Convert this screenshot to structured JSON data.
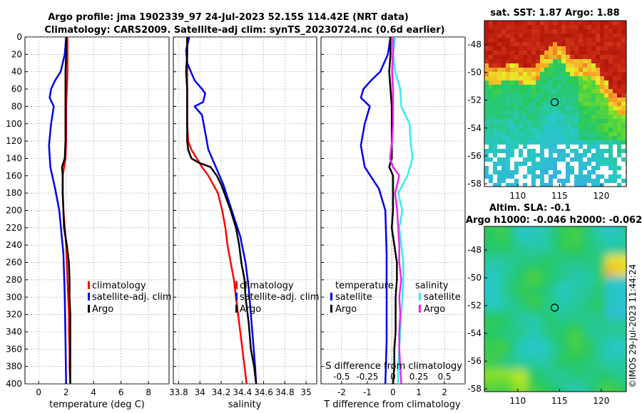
{
  "figure": {
    "title_line1": "Argo profile: jma 1902339_97 24-Jul-2023 52.15S 114.42E (NRT data)",
    "title_line2": "Climatology: CARS2009. Satellite-adj clim: synTS_20230724.nc (0.6d earlier)",
    "watermark": "©IMOS 29-Jul-2023 11:44:24",
    "colors": {
      "climatology": "#ff0000",
      "satellite": "#0000ee",
      "argo": "#000000",
      "salinity_satellite": "#33eeee",
      "salinity_argo": "#ee22ee"
    }
  },
  "chart_data": [
    {
      "type": "line",
      "name": "temperature-profile",
      "xlabel": "temperature (deg C)",
      "ylabel": "",
      "xlim": [
        -1,
        9.5
      ],
      "ylim": [
        400,
        0
      ],
      "xticks": [
        "0",
        "2",
        "4",
        "6",
        "8"
      ],
      "xtick_values": [
        0,
        2,
        4,
        6,
        8
      ],
      "yticks": [
        "0",
        "20",
        "40",
        "60",
        "80",
        "100",
        "120",
        "140",
        "160",
        "180",
        "200",
        "220",
        "240",
        "260",
        "280",
        "300",
        "320",
        "340",
        "360",
        "380",
        "400"
      ],
      "ytick_values": [
        0,
        20,
        40,
        60,
        80,
        100,
        120,
        140,
        160,
        180,
        200,
        220,
        240,
        260,
        280,
        300,
        320,
        340,
        360,
        380,
        400
      ],
      "legend": [
        "climatology",
        "satellite-adj. clim",
        "Argo"
      ],
      "series": [
        {
          "name": "climatology",
          "color": "#ff0000",
          "depth": [
            0,
            20,
            40,
            60,
            80,
            100,
            120,
            140,
            160,
            180,
            200,
            220,
            240,
            260,
            280,
            300,
            320,
            340,
            360,
            380,
            400
          ],
          "values": [
            2.1,
            2.1,
            2.1,
            2.05,
            2.0,
            2.0,
            2.0,
            1.95,
            1.75,
            1.75,
            1.8,
            1.9,
            2.0,
            2.05,
            2.1,
            2.15,
            2.2,
            2.2,
            2.25,
            2.25,
            2.3
          ]
        },
        {
          "name": "satellite-adj. clim",
          "color": "#0000ee",
          "depth": [
            0,
            20,
            40,
            50,
            60,
            70,
            80,
            100,
            125,
            150,
            175,
            200,
            250,
            300,
            350,
            400
          ],
          "values": [
            2.0,
            1.9,
            1.6,
            1.2,
            0.9,
            0.8,
            1.1,
            0.9,
            0.75,
            0.85,
            1.2,
            1.5,
            1.8,
            1.9,
            1.95,
            2.0
          ]
        },
        {
          "name": "Argo",
          "color": "#000000",
          "depth": [
            0,
            20,
            40,
            60,
            80,
            100,
            120,
            140,
            150,
            160,
            180,
            200,
            220,
            240,
            260,
            280,
            300,
            320,
            340,
            360,
            380,
            400
          ],
          "values": [
            2.0,
            2.0,
            1.95,
            1.95,
            1.95,
            1.95,
            1.95,
            1.9,
            1.7,
            1.75,
            1.75,
            1.8,
            1.85,
            2.05,
            2.2,
            2.25,
            2.25,
            2.3,
            2.3,
            2.3,
            2.3,
            2.3
          ]
        }
      ]
    },
    {
      "type": "line",
      "name": "salinity-profile",
      "xlabel": "salinity",
      "ylabel": "",
      "xlim": [
        33.75,
        35.1
      ],
      "ylim": [
        400,
        0
      ],
      "xticks": [
        "33.8",
        "34",
        "34.2",
        "34.4",
        "34.6",
        "34.8",
        "35"
      ],
      "xtick_values": [
        33.8,
        34.0,
        34.2,
        34.4,
        34.6,
        34.8,
        35.0
      ],
      "legend": [
        "climatology",
        "satellite-adj. clim",
        "Argo"
      ],
      "series": [
        {
          "name": "climatology",
          "color": "#ff0000",
          "depth": [
            0,
            20,
            40,
            60,
            80,
            100,
            120,
            130,
            140,
            150,
            160,
            180,
            200,
            220,
            240,
            260,
            280,
            300,
            320,
            340,
            360,
            380,
            400
          ],
          "values": [
            33.88,
            33.88,
            33.88,
            33.88,
            33.88,
            33.88,
            33.89,
            33.92,
            33.97,
            34.02,
            34.08,
            34.17,
            34.21,
            34.24,
            34.26,
            34.29,
            34.32,
            34.34,
            34.36,
            34.38,
            34.4,
            34.42,
            34.44
          ]
        },
        {
          "name": "satellite-adj. clim",
          "color": "#0000ee",
          "depth": [
            0,
            15,
            30,
            50,
            60,
            65,
            75,
            80,
            90,
            110,
            130,
            150,
            170,
            200,
            230,
            260,
            290,
            320,
            350,
            380,
            400
          ],
          "values": [
            33.9,
            33.87,
            33.88,
            33.95,
            34.02,
            34.05,
            34.03,
            33.95,
            34.02,
            34.05,
            34.08,
            34.15,
            34.22,
            34.3,
            34.38,
            34.43,
            34.46,
            34.48,
            34.5,
            34.52,
            34.53
          ]
        },
        {
          "name": "Argo",
          "color": "#000000",
          "depth": [
            0,
            20,
            40,
            60,
            80,
            100,
            120,
            130,
            140,
            145,
            150,
            160,
            170,
            180,
            200,
            220,
            240,
            260,
            280,
            300,
            330,
            360,
            380,
            400
          ],
          "values": [
            33.88,
            33.88,
            33.87,
            33.88,
            33.88,
            33.88,
            33.88,
            33.89,
            33.92,
            33.99,
            34.1,
            34.16,
            34.2,
            34.23,
            34.29,
            34.34,
            34.37,
            34.39,
            34.42,
            34.43,
            34.46,
            34.48,
            34.51,
            34.53
          ]
        }
      ]
    },
    {
      "type": "line",
      "name": "difference-profile",
      "xlabel": "T difference from climatology",
      "xlabel2": "S difference from climatology",
      "xlim": [
        -2.8,
        2.8
      ],
      "s_xlim": [
        -0.7,
        0.7
      ],
      "ylim": [
        400,
        0
      ],
      "xticks": [
        "-2",
        "-1",
        "0",
        "1",
        "2"
      ],
      "xtick_values": [
        -2,
        -1,
        0,
        1,
        2
      ],
      "s_xticks": [
        "-0.5",
        "-0.25",
        "0",
        "0.25",
        "0.5"
      ],
      "s_xtick_values": [
        -0.5,
        -0.25,
        0,
        0.25,
        0.5
      ],
      "legend_headers": [
        "temperature",
        "salinity"
      ],
      "legend_t": [
        "satellite",
        "Argo"
      ],
      "legend_s": [
        "satellite",
        "Argo"
      ],
      "series": [
        {
          "name": "temperature satellite",
          "color": "#0000ee",
          "depth": [
            0,
            20,
            40,
            50,
            60,
            70,
            80,
            100,
            125,
            150,
            175,
            200,
            250,
            300,
            350,
            400
          ],
          "values": [
            -0.1,
            -0.2,
            -0.5,
            -0.85,
            -1.15,
            -1.25,
            -0.9,
            -1.1,
            -1.25,
            -1.1,
            -0.55,
            -0.3,
            -0.25,
            -0.25,
            -0.25,
            -0.3
          ]
        },
        {
          "name": "temperature Argo",
          "color": "#000000",
          "depth": [
            0,
            20,
            40,
            60,
            80,
            100,
            120,
            140,
            150,
            160,
            180,
            200,
            220,
            240,
            260,
            280,
            300,
            320,
            340,
            360,
            380,
            400
          ],
          "values": [
            -0.1,
            -0.1,
            -0.15,
            -0.1,
            -0.05,
            -0.05,
            -0.05,
            -0.05,
            -0.15,
            0.0,
            0.0,
            0.0,
            -0.05,
            0.05,
            0.15,
            0.15,
            0.1,
            0.1,
            0.1,
            0.05,
            0.05,
            0.0
          ]
        },
        {
          "name": "salinity satellite",
          "color": "#33eeee",
          "depth": [
            0,
            20,
            40,
            60,
            80,
            100,
            120,
            140,
            160,
            180,
            200,
            220,
            240,
            260,
            280,
            300,
            320,
            340,
            360,
            380,
            400
          ],
          "values": [
            0.02,
            0.0,
            0.02,
            0.07,
            0.08,
            0.16,
            0.17,
            0.19,
            0.14,
            0.05,
            0.09,
            0.06,
            0.08,
            0.1,
            0.1,
            0.09,
            0.08,
            0.07,
            0.06,
            0.05,
            0.05
          ]
        },
        {
          "name": "salinity Argo",
          "color": "#ee22ee",
          "depth": [
            0,
            20,
            40,
            60,
            80,
            100,
            120,
            140,
            150,
            160,
            180,
            200,
            220,
            240,
            260,
            280,
            300,
            320,
            340,
            360,
            380,
            400
          ],
          "values": [
            0.0,
            0.0,
            -0.01,
            0.0,
            0.0,
            0.0,
            -0.01,
            -0.03,
            0.0,
            0.06,
            0.02,
            0.04,
            0.05,
            0.06,
            0.06,
            0.08,
            0.06,
            0.07,
            0.06,
            0.06,
            0.07,
            0.08
          ]
        }
      ]
    },
    {
      "type": "heatmap",
      "name": "sst-map",
      "title": "sat. SST: 1.87 Argo: 1.88",
      "xlim": [
        106,
        123
      ],
      "ylim": [
        -58.2,
        -46.3
      ],
      "xticks": [
        "110",
        "115",
        "120"
      ],
      "xtick_values": [
        110,
        115,
        120
      ],
      "yticks": [
        "-48",
        "-50",
        "-52",
        "-54",
        "-56",
        "-58"
      ],
      "ytick_values": [
        -48,
        -50,
        -52,
        -54,
        -56,
        -58
      ],
      "marker": {
        "lon": 114.42,
        "lat": -52.15
      }
    },
    {
      "type": "heatmap",
      "name": "sla-map",
      "title": "Altim. SLA: -0.1",
      "subtitle": "Argo h1000: -0.046 h2000: -0.062",
      "xlim": [
        106,
        123
      ],
      "ylim": [
        -58.2,
        -46.3
      ],
      "xticks": [
        "110",
        "115",
        "120"
      ],
      "xtick_values": [
        110,
        115,
        120
      ],
      "yticks": [
        "-48",
        "-50",
        "-52",
        "-54",
        "-56",
        "-58"
      ],
      "ytick_values": [
        -48,
        -50,
        -52,
        -54,
        -56,
        -58
      ],
      "marker": {
        "lon": 114.42,
        "lat": -52.15
      }
    }
  ]
}
